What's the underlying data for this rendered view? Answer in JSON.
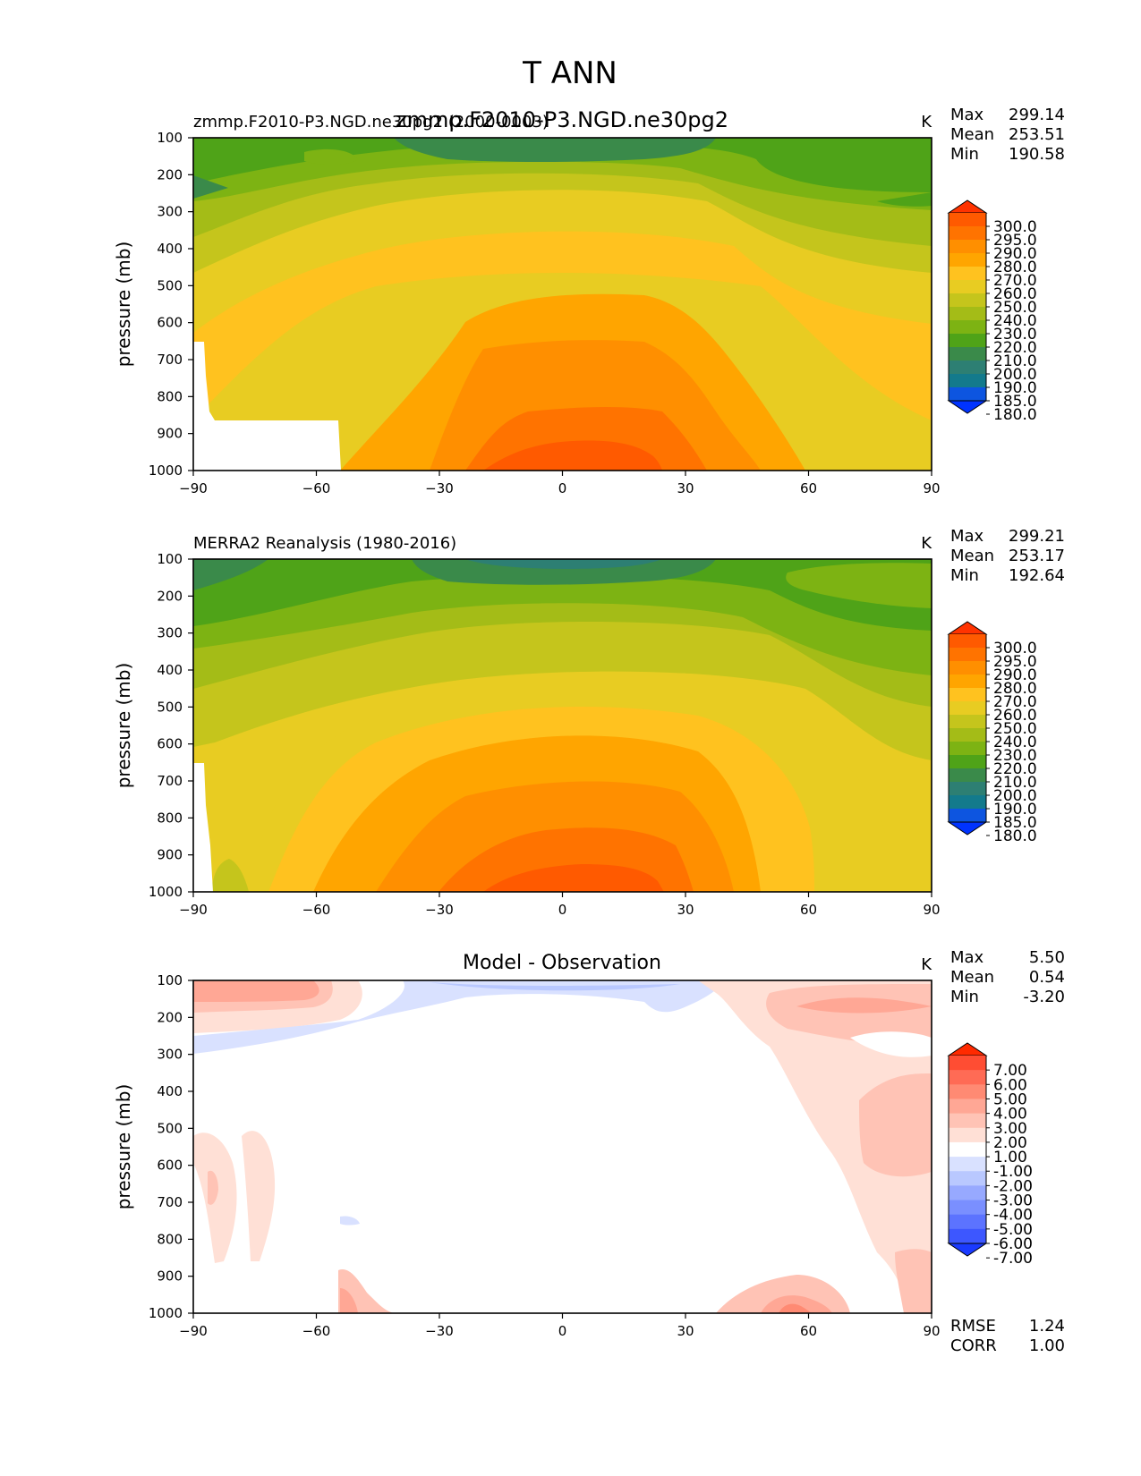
{
  "figure": {
    "title": "T ANN"
  },
  "chart_data": [
    {
      "type": "heatmap",
      "name": "test",
      "title_left": "zmmp.F2010-P3.NGD.ne30pg2 (2000-0003)",
      "title_center": "zmmp.F2010-P3.NGD.ne30pg2",
      "units": "K",
      "xlabel": "",
      "ylabel": "pressure (mb)",
      "x_ticks": [
        "−90",
        "−60",
        "−30",
        "0",
        "30",
        "60",
        "90"
      ],
      "y_ticks": [
        "100",
        "200",
        "300",
        "400",
        "500",
        "600",
        "700",
        "800",
        "900",
        "1000"
      ],
      "xlim": [
        -90,
        90
      ],
      "ylim": [
        1000,
        100
      ],
      "stats": [
        {
          "label": "Max",
          "value": "299.14"
        },
        {
          "label": "Mean",
          "value": "253.51"
        },
        {
          "label": "Min",
          "value": "190.58"
        }
      ],
      "colorbar": {
        "labels": [
          "300.0",
          "295.0",
          "290.0",
          "280.0",
          "270.0",
          "260.0",
          "250.0",
          "240.0",
          "230.0",
          "220.0",
          "210.0",
          "200.0",
          "190.0",
          "185.0",
          "180.0"
        ],
        "colors": [
          "#ff3300",
          "#ff5a00",
          "#ff7300",
          "#ff8f00",
          "#ffa500",
          "#ffc21f",
          "#e8cc22",
          "#c5c51c",
          "#a4bc17",
          "#7db313",
          "#4fa318",
          "#3a8a4a",
          "#2d7f73",
          "#137a8c",
          "#0d55e0",
          "#0033ff"
        ]
      }
    },
    {
      "type": "heatmap",
      "name": "reference",
      "title_left": "MERRA2 Reanalysis (1980-2016)",
      "title_center": "",
      "units": "K",
      "xlabel": "",
      "ylabel": "pressure (mb)",
      "x_ticks": [
        "−90",
        "−60",
        "−30",
        "0",
        "30",
        "60",
        "90"
      ],
      "y_ticks": [
        "100",
        "200",
        "300",
        "400",
        "500",
        "600",
        "700",
        "800",
        "900",
        "1000"
      ],
      "xlim": [
        -90,
        90
      ],
      "ylim": [
        1000,
        100
      ],
      "stats": [
        {
          "label": "Max",
          "value": "299.21"
        },
        {
          "label": "Mean",
          "value": "253.17"
        },
        {
          "label": "Min",
          "value": "192.64"
        }
      ],
      "colorbar": {
        "labels": [
          "300.0",
          "295.0",
          "290.0",
          "280.0",
          "270.0",
          "260.0",
          "250.0",
          "240.0",
          "230.0",
          "220.0",
          "210.0",
          "200.0",
          "190.0",
          "185.0",
          "180.0"
        ],
        "colors": [
          "#ff3300",
          "#ff5a00",
          "#ff7300",
          "#ff8f00",
          "#ffa500",
          "#ffc21f",
          "#e8cc22",
          "#c5c51c",
          "#a4bc17",
          "#7db313",
          "#4fa318",
          "#3a8a4a",
          "#2d7f73",
          "#137a8c",
          "#0d55e0",
          "#0033ff"
        ]
      }
    },
    {
      "type": "heatmap",
      "name": "difference",
      "title_left": "",
      "title_center": "Model - Observation",
      "units": "K",
      "xlabel": "",
      "ylabel": "pressure (mb)",
      "x_ticks": [
        "−90",
        "−60",
        "−30",
        "0",
        "30",
        "60",
        "90"
      ],
      "y_ticks": [
        "100",
        "200",
        "300",
        "400",
        "500",
        "600",
        "700",
        "800",
        "900",
        "1000"
      ],
      "xlim": [
        -90,
        90
      ],
      "ylim": [
        1000,
        100
      ],
      "stats": [
        {
          "label": "Max",
          "value": "5.50"
        },
        {
          "label": "Mean",
          "value": "0.54"
        },
        {
          "label": "Min",
          "value": "-3.20"
        }
      ],
      "extra_stats": [
        {
          "label": "RMSE",
          "value": "1.24"
        },
        {
          "label": "CORR",
          "value": "1.00"
        }
      ],
      "colorbar": {
        "labels": [
          "7.00",
          "6.00",
          "5.00",
          "4.00",
          "3.00",
          "2.00",
          "1.00",
          "-1.00",
          "-2.00",
          "-3.00",
          "-4.00",
          "-5.00",
          "-6.00",
          "-7.00"
        ],
        "colors": [
          "#ff2a00",
          "#ff4d33",
          "#ff6b55",
          "#ff8a73",
          "#ffa795",
          "#ffc3b5",
          "#ffe0d6",
          "#ffffff",
          "#d9e1ff",
          "#b9c8ff",
          "#97a9ff",
          "#7a8fff",
          "#5c73ff",
          "#3d57ff",
          "#1a3aff"
        ]
      }
    }
  ]
}
